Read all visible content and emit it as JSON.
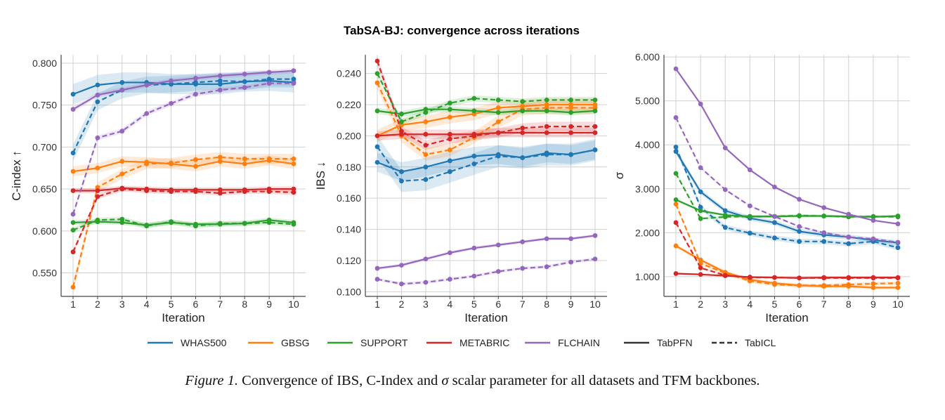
{
  "figure": {
    "suptitle": "TabSA-BJ: convergence across iterations",
    "caption": {
      "figure_number": "Figure 1.",
      "text_before_sigma": "Convergence of IBS, C-Index and",
      "sigma_symbol": "σ",
      "text_after_sigma": "scalar parameter for all datasets and TFM backbones."
    }
  },
  "colors": {
    "WHAS500": "#1f77b4",
    "GBSG": "#ff7f0e",
    "SUPPORT": "#2ca02c",
    "METABRIC": "#d62728",
    "FLCHAIN": "#9467bd",
    "grid": "#d0d0d0",
    "axes": "#444444"
  },
  "legend": {
    "placement": "bottom-center",
    "datasets": [
      "WHAS500",
      "GBSG",
      "SUPPORT",
      "METABRIC",
      "FLCHAIN"
    ],
    "backbones": [
      {
        "name": "TabPFN",
        "style": "solid"
      },
      {
        "name": "TabICL",
        "style": "dashed"
      }
    ]
  },
  "chart_data": [
    {
      "type": "line",
      "xlabel": "Iteration",
      "ylabel": "C-index ↑",
      "x": [
        1,
        2,
        3,
        4,
        5,
        6,
        7,
        8,
        9,
        10
      ],
      "xticks": [
        "1",
        "2",
        "3",
        "4",
        "5",
        "6",
        "7",
        "8",
        "9",
        "10"
      ],
      "yticks": [
        "0.550",
        "0.600",
        "0.650",
        "0.700",
        "0.750",
        "0.800"
      ],
      "ytick_values": [
        0.55,
        0.6,
        0.65,
        0.7,
        0.75,
        0.8
      ],
      "ylim": [
        0.522,
        0.81
      ],
      "grid": true,
      "series": [
        {
          "dataset": "WHAS500",
          "backbone": "TabPFN",
          "band": 0.012,
          "values": [
            0.763,
            0.774,
            0.777,
            0.777,
            0.775,
            0.775,
            0.775,
            0.778,
            0.779,
            0.777
          ]
        },
        {
          "dataset": "WHAS500",
          "backbone": "TabICL",
          "band": 0.01,
          "values": [
            0.693,
            0.754,
            0.768,
            0.774,
            0.775,
            0.777,
            0.779,
            0.778,
            0.781,
            0.781
          ]
        },
        {
          "dataset": "GBSG",
          "backbone": "TabPFN",
          "band": 0.006,
          "values": [
            0.671,
            0.675,
            0.683,
            0.682,
            0.68,
            0.677,
            0.683,
            0.68,
            0.684,
            0.68
          ]
        },
        {
          "dataset": "GBSG",
          "backbone": "TabICL",
          "band": 0.006,
          "values": [
            0.533,
            0.652,
            0.668,
            0.68,
            0.681,
            0.685,
            0.688,
            0.686,
            0.686,
            0.686
          ]
        },
        {
          "dataset": "SUPPORT",
          "backbone": "TabPFN",
          "band": 0.003,
          "values": [
            0.61,
            0.611,
            0.61,
            0.607,
            0.61,
            0.608,
            0.608,
            0.609,
            0.613,
            0.61
          ]
        },
        {
          "dataset": "SUPPORT",
          "backbone": "TabICL",
          "band": 0.003,
          "values": [
            0.601,
            0.613,
            0.614,
            0.606,
            0.611,
            0.606,
            0.609,
            0.609,
            0.61,
            0.608
          ]
        },
        {
          "dataset": "METABRIC",
          "backbone": "TabPFN",
          "band": 0.003,
          "values": [
            0.648,
            0.648,
            0.651,
            0.65,
            0.649,
            0.649,
            0.649,
            0.649,
            0.65,
            0.65
          ]
        },
        {
          "dataset": "METABRIC",
          "backbone": "TabICL",
          "band": 0.003,
          "values": [
            0.575,
            0.641,
            0.65,
            0.648,
            0.647,
            0.647,
            0.645,
            0.647,
            0.647,
            0.646
          ]
        },
        {
          "dataset": "FLCHAIN",
          "backbone": "TabPFN",
          "band": 0.003,
          "values": [
            0.745,
            0.762,
            0.768,
            0.774,
            0.779,
            0.782,
            0.785,
            0.787,
            0.789,
            0.791
          ]
        },
        {
          "dataset": "FLCHAIN",
          "backbone": "TabICL",
          "band": 0.003,
          "values": [
            0.62,
            0.711,
            0.719,
            0.74,
            0.752,
            0.763,
            0.768,
            0.771,
            0.776,
            0.776
          ]
        }
      ]
    },
    {
      "type": "line",
      "xlabel": "Iteration",
      "ylabel": "IBS ↓",
      "x": [
        1,
        2,
        3,
        4,
        5,
        6,
        7,
        8,
        9,
        10
      ],
      "xticks": [
        "1",
        "2",
        "3",
        "4",
        "5",
        "6",
        "7",
        "8",
        "9",
        "10"
      ],
      "yticks": [
        "0.100",
        "0.120",
        "0.140",
        "0.160",
        "0.180",
        "0.200",
        "0.220",
        "0.240"
      ],
      "ytick_values": [
        0.1,
        0.12,
        0.14,
        0.16,
        0.18,
        0.2,
        0.22,
        0.24
      ],
      "ylim": [
        0.097,
        0.252
      ],
      "grid": true,
      "series": [
        {
          "dataset": "WHAS500",
          "backbone": "TabPFN",
          "band": 0.006,
          "values": [
            0.183,
            0.177,
            0.18,
            0.184,
            0.187,
            0.188,
            0.186,
            0.189,
            0.188,
            0.191
          ]
        },
        {
          "dataset": "WHAS500",
          "backbone": "TabICL",
          "band": 0.007,
          "values": [
            0.193,
            0.171,
            0.172,
            0.177,
            0.182,
            0.187,
            0.186,
            0.188,
            0.188,
            0.191
          ]
        },
        {
          "dataset": "GBSG",
          "backbone": "TabPFN",
          "band": 0.004,
          "values": [
            0.2,
            0.207,
            0.209,
            0.212,
            0.214,
            0.218,
            0.219,
            0.22,
            0.22,
            0.22
          ]
        },
        {
          "dataset": "GBSG",
          "backbone": "TabICL",
          "band": 0.004,
          "values": [
            0.234,
            0.2,
            0.188,
            0.191,
            0.199,
            0.209,
            0.217,
            0.218,
            0.218,
            0.218
          ]
        },
        {
          "dataset": "SUPPORT",
          "backbone": "TabPFN",
          "band": 0.002,
          "values": [
            0.216,
            0.214,
            0.217,
            0.217,
            0.216,
            0.215,
            0.216,
            0.216,
            0.215,
            0.216
          ]
        },
        {
          "dataset": "SUPPORT",
          "backbone": "TabICL",
          "band": 0.002,
          "values": [
            0.24,
            0.209,
            0.215,
            0.221,
            0.224,
            0.223,
            0.222,
            0.223,
            0.223,
            0.223
          ]
        },
        {
          "dataset": "METABRIC",
          "backbone": "TabPFN",
          "band": 0.003,
          "values": [
            0.2,
            0.201,
            0.201,
            0.201,
            0.201,
            0.202,
            0.202,
            0.202,
            0.202,
            0.202
          ]
        },
        {
          "dataset": "METABRIC",
          "backbone": "TabICL",
          "band": 0.003,
          "values": [
            0.248,
            0.203,
            0.194,
            0.198,
            0.2,
            0.202,
            0.205,
            0.206,
            0.206,
            0.206
          ]
        },
        {
          "dataset": "FLCHAIN",
          "backbone": "TabPFN",
          "band": 0.001,
          "values": [
            0.115,
            0.117,
            0.121,
            0.125,
            0.128,
            0.13,
            0.132,
            0.134,
            0.134,
            0.136
          ]
        },
        {
          "dataset": "FLCHAIN",
          "backbone": "TabICL",
          "band": 0.001,
          "values": [
            0.108,
            0.105,
            0.106,
            0.108,
            0.11,
            0.113,
            0.115,
            0.116,
            0.119,
            0.121
          ]
        }
      ]
    },
    {
      "type": "line",
      "xlabel": "Iteration",
      "ylabel": "σ",
      "x": [
        1,
        2,
        3,
        4,
        5,
        6,
        7,
        8,
        9,
        10
      ],
      "xticks": [
        "1",
        "2",
        "3",
        "4",
        "5",
        "6",
        "7",
        "8",
        "9",
        "10"
      ],
      "yticks": [
        "1.000",
        "2.000",
        "3.000",
        "4.000",
        "5.000",
        "6.000"
      ],
      "ytick_values": [
        1,
        2,
        3,
        4,
        5,
        6
      ],
      "ylim": [
        0.55,
        6.05
      ],
      "grid": true,
      "series": [
        {
          "dataset": "WHAS500",
          "backbone": "TabPFN",
          "band": 0.06,
          "values": [
            3.85,
            2.93,
            2.5,
            2.33,
            2.23,
            2.03,
            1.95,
            1.9,
            1.83,
            1.77
          ]
        },
        {
          "dataset": "WHAS500",
          "backbone": "TabICL",
          "band": 0.06,
          "values": [
            3.95,
            2.58,
            2.12,
            1.99,
            1.88,
            1.8,
            1.8,
            1.75,
            1.8,
            1.66
          ]
        },
        {
          "dataset": "GBSG",
          "backbone": "TabPFN",
          "band": 0.04,
          "values": [
            1.7,
            1.38,
            1.1,
            0.93,
            0.85,
            0.8,
            0.78,
            0.78,
            0.75,
            0.75
          ]
        },
        {
          "dataset": "GBSG",
          "backbone": "TabICL",
          "band": 0.04,
          "values": [
            2.65,
            1.3,
            1.08,
            0.9,
            0.82,
            0.8,
            0.8,
            0.82,
            0.84,
            0.85
          ]
        },
        {
          "dataset": "SUPPORT",
          "backbone": "TabPFN",
          "band": 0.03,
          "values": [
            2.75,
            2.5,
            2.4,
            2.37,
            2.37,
            2.38,
            2.38,
            2.37,
            2.36,
            2.38
          ]
        },
        {
          "dataset": "SUPPORT",
          "backbone": "TabICL",
          "band": 0.03,
          "values": [
            3.35,
            2.32,
            2.36,
            2.37,
            2.37,
            2.39,
            2.38,
            2.36,
            2.37,
            2.36
          ]
        },
        {
          "dataset": "METABRIC",
          "backbone": "TabPFN",
          "band": 0.02,
          "values": [
            1.07,
            1.05,
            1.02,
            0.99,
            0.98,
            0.97,
            0.98,
            0.98,
            0.98,
            0.98
          ]
        },
        {
          "dataset": "METABRIC",
          "backbone": "TabICL",
          "band": 0.02,
          "values": [
            2.23,
            1.2,
            1.03,
            0.98,
            0.98,
            0.97,
            0.97,
            0.97,
            0.97,
            0.97
          ]
        },
        {
          "dataset": "FLCHAIN",
          "backbone": "TabPFN",
          "band": 0.02,
          "values": [
            5.73,
            4.93,
            3.93,
            3.43,
            3.04,
            2.76,
            2.57,
            2.42,
            2.28,
            2.2
          ]
        },
        {
          "dataset": "FLCHAIN",
          "backbone": "TabICL",
          "band": 0.02,
          "values": [
            4.62,
            3.48,
            2.98,
            2.61,
            2.37,
            2.14,
            2.0,
            1.9,
            1.86,
            1.78
          ]
        }
      ]
    }
  ]
}
